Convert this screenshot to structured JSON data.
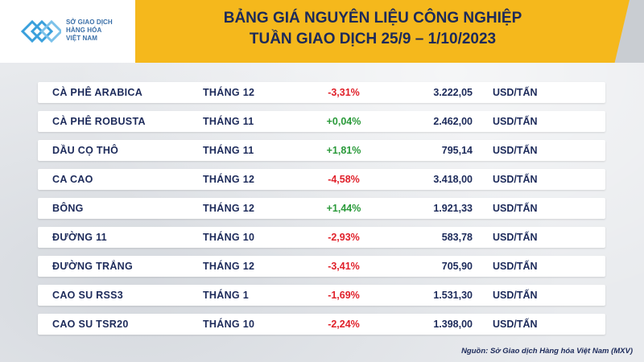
{
  "header": {
    "logo_lines": [
      "SỞ GIAO DỊCH",
      "HÀNG HÓA",
      "VIỆT NAM"
    ],
    "title_line1": "BẢNG GIÁ NGUYÊN LIỆU CÔNG NGHIỆP",
    "title_line2": "TUẦN GIAO DỊCH 25/9 – 1/10/2023"
  },
  "colors": {
    "header_yellow": "#f5b81c",
    "title_navy": "#1c2a5a",
    "negative": "#e0202a",
    "positive": "#2a9a3a"
  },
  "rows": [
    {
      "name": "CÀ PHÊ ARABICA",
      "month": "THÁNG 12",
      "change": "-3,31%",
      "direction": "down",
      "price": "3.222,05",
      "unit": "USD/TẤN"
    },
    {
      "name": "CÀ PHÊ ROBUSTA",
      "month": "THÁNG 11",
      "change": "+0,04%",
      "direction": "up",
      "price": "2.462,00",
      "unit": "USD/TẤN"
    },
    {
      "name": "DẦU CỌ THÔ",
      "month": "THÁNG 11",
      "change": "+1,81%",
      "direction": "up",
      "price": "795,14",
      "unit": "USD/TẤN"
    },
    {
      "name": "CA CAO",
      "month": "THÁNG 12",
      "change": "-4,58%",
      "direction": "down",
      "price": "3.418,00",
      "unit": "USD/TẤN"
    },
    {
      "name": "BÔNG",
      "month": "THÁNG 12",
      "change": "+1,44%",
      "direction": "up",
      "price": "1.921,33",
      "unit": "USD/TẤN"
    },
    {
      "name": "ĐƯỜNG 11",
      "month": "THÁNG 10",
      "change": "-2,93%",
      "direction": "down",
      "price": "583,78",
      "unit": "USD/TẤN"
    },
    {
      "name": "ĐƯỜNG TRẮNG",
      "month": "THÁNG 12",
      "change": "-3,41%",
      "direction": "down",
      "price": "705,90",
      "unit": "USD/TẤN"
    },
    {
      "name": "CAO SU RSS3",
      "month": "THÁNG 1",
      "change": "-1,69%",
      "direction": "down",
      "price": "1.531,30",
      "unit": "USD/TẤN"
    },
    {
      "name": "CAO SU TSR20",
      "month": "THÁNG 10",
      "change": "-2,24%",
      "direction": "down",
      "price": "1.398,00",
      "unit": "USD/TẤN"
    }
  ],
  "footer": {
    "source": "Nguồn: Sở Giao dịch Hàng hóa Việt Nam (MXV)"
  }
}
